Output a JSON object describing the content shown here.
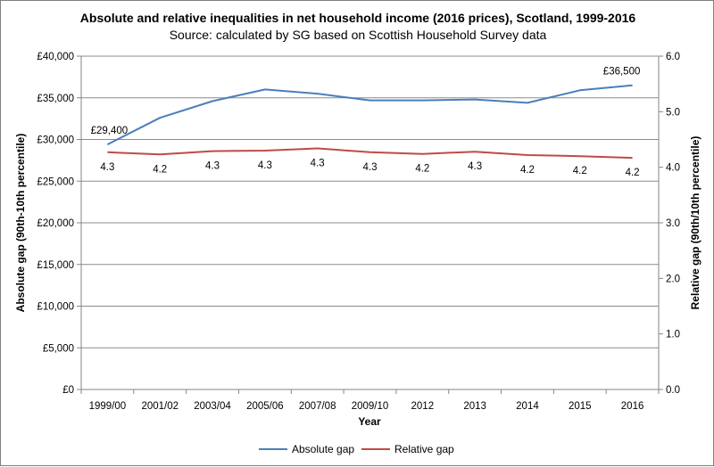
{
  "chart_data": {
    "type": "line",
    "title": "Absolute and relative inequalities in net household income (2016 prices), Scotland, 1999-2016",
    "subtitle": "Source: calculated by SG based on Scottish Household Survey data",
    "xlabel": "Year",
    "ylabel_left": "Absolute gap (90th-10th percentile)",
    "ylabel_right": "Relative gap (90th/10th percentile)",
    "categories": [
      "1999/00",
      "2001/02",
      "2003/04",
      "2005/06",
      "2007/08",
      "2009/10",
      "2012",
      "2013",
      "2014",
      "2015",
      "2016"
    ],
    "ylim_left": [
      0,
      40000
    ],
    "ylim_right": [
      0,
      6
    ],
    "yticks_left": [
      "£0",
      "£5,000",
      "£10,000",
      "£15,000",
      "£20,000",
      "£25,000",
      "£30,000",
      "£35,000",
      "£40,000"
    ],
    "yticks_right": [
      "0.0",
      "1.0",
      "2.0",
      "3.0",
      "4.0",
      "5.0",
      "6.0"
    ],
    "grid": true,
    "legend_position": "bottom",
    "series": [
      {
        "name": "Absolute gap",
        "axis": "left",
        "color": "#4a7ebb",
        "values": [
          29400,
          32600,
          34600,
          36000,
          35500,
          34700,
          34700,
          34800,
          34400,
          35900,
          36500
        ],
        "labels": [
          "£29,400",
          "",
          "",
          "",
          "",
          "",
          "",
          "",
          "",
          "",
          "£36,500"
        ]
      },
      {
        "name": "Relative gap",
        "axis": "right",
        "color": "#be4b48",
        "values": [
          4.27,
          4.23,
          4.29,
          4.3,
          4.34,
          4.27,
          4.24,
          4.28,
          4.22,
          4.2,
          4.17
        ],
        "labels": [
          "4.3",
          "4.2",
          "4.3",
          "4.3",
          "4.3",
          "4.3",
          "4.2",
          "4.3",
          "4.2",
          "4.2",
          "4.2"
        ]
      }
    ]
  }
}
